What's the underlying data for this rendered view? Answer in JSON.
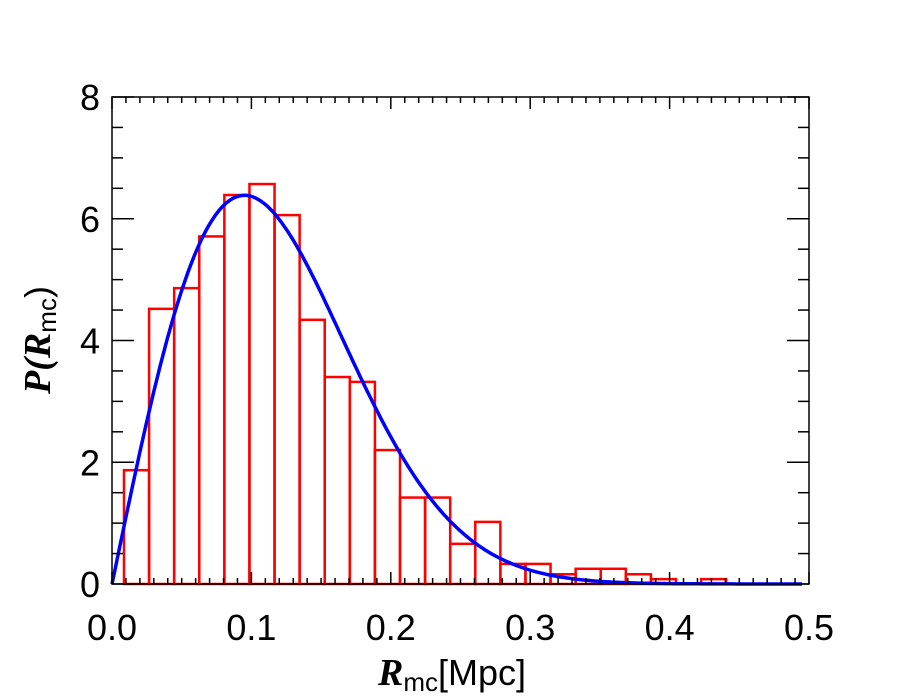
{
  "chart_data": {
    "type": "bar",
    "subtype": "histogram_with_fit",
    "title": "",
    "xlabel": "R_mc [Mpc]",
    "ylabel": "P(R_mc)",
    "xlim": [
      0.0,
      0.5
    ],
    "ylim": [
      0,
      8
    ],
    "xticks": [
      "0.0",
      "0.1",
      "0.2",
      "0.3",
      "0.4",
      "0.5"
    ],
    "yticks": [
      "0",
      "2",
      "4",
      "6",
      "8"
    ],
    "grid": false,
    "legend": null,
    "bin_width": 0.018,
    "bin_start": 0.0086,
    "series": [
      {
        "name": "histogram",
        "style": "step-outline",
        "color": "#ff0000",
        "bin_left_edges": [
          0.0086,
          0.0266,
          0.0446,
          0.0626,
          0.0806,
          0.0986,
          0.1166,
          0.1346,
          0.1526,
          0.1706,
          0.1886,
          0.2066,
          0.2246,
          0.2426,
          0.2606,
          0.2786,
          0.2966,
          0.3146,
          0.3326,
          0.3506,
          0.3686,
          0.3866,
          0.4046,
          0.4226
        ],
        "values": [
          1.87,
          4.52,
          4.86,
          5.71,
          6.39,
          6.57,
          6.06,
          4.34,
          3.4,
          3.32,
          2.2,
          1.42,
          1.42,
          0.66,
          1.02,
          0.33,
          0.33,
          0.16,
          0.25,
          0.25,
          0.16,
          0.08,
          0.0,
          0.08
        ]
      },
      {
        "name": "fit",
        "style": "line",
        "color": "#0000ff",
        "model": "rayleigh",
        "sigma": 0.095,
        "x": [
          0.0,
          0.025,
          0.05,
          0.075,
          0.095,
          0.125,
          0.15,
          0.175,
          0.2,
          0.25,
          0.3,
          0.35,
          0.4,
          0.45,
          0.495
        ],
        "values": [
          0.0,
          2.67,
          4.86,
          6.13,
          6.39,
          6.07,
          4.98,
          3.56,
          2.42,
          0.87,
          0.23,
          0.04,
          0.01,
          0.0,
          0.0
        ]
      }
    ]
  },
  "labels": {
    "x_title_main": "R",
    "x_title_sub": "mc",
    "x_title_unit": "[Mpc]",
    "y_title_prefix": "P(",
    "y_title_main": "R",
    "y_title_sub": "mc",
    "y_title_suffix": ")"
  }
}
